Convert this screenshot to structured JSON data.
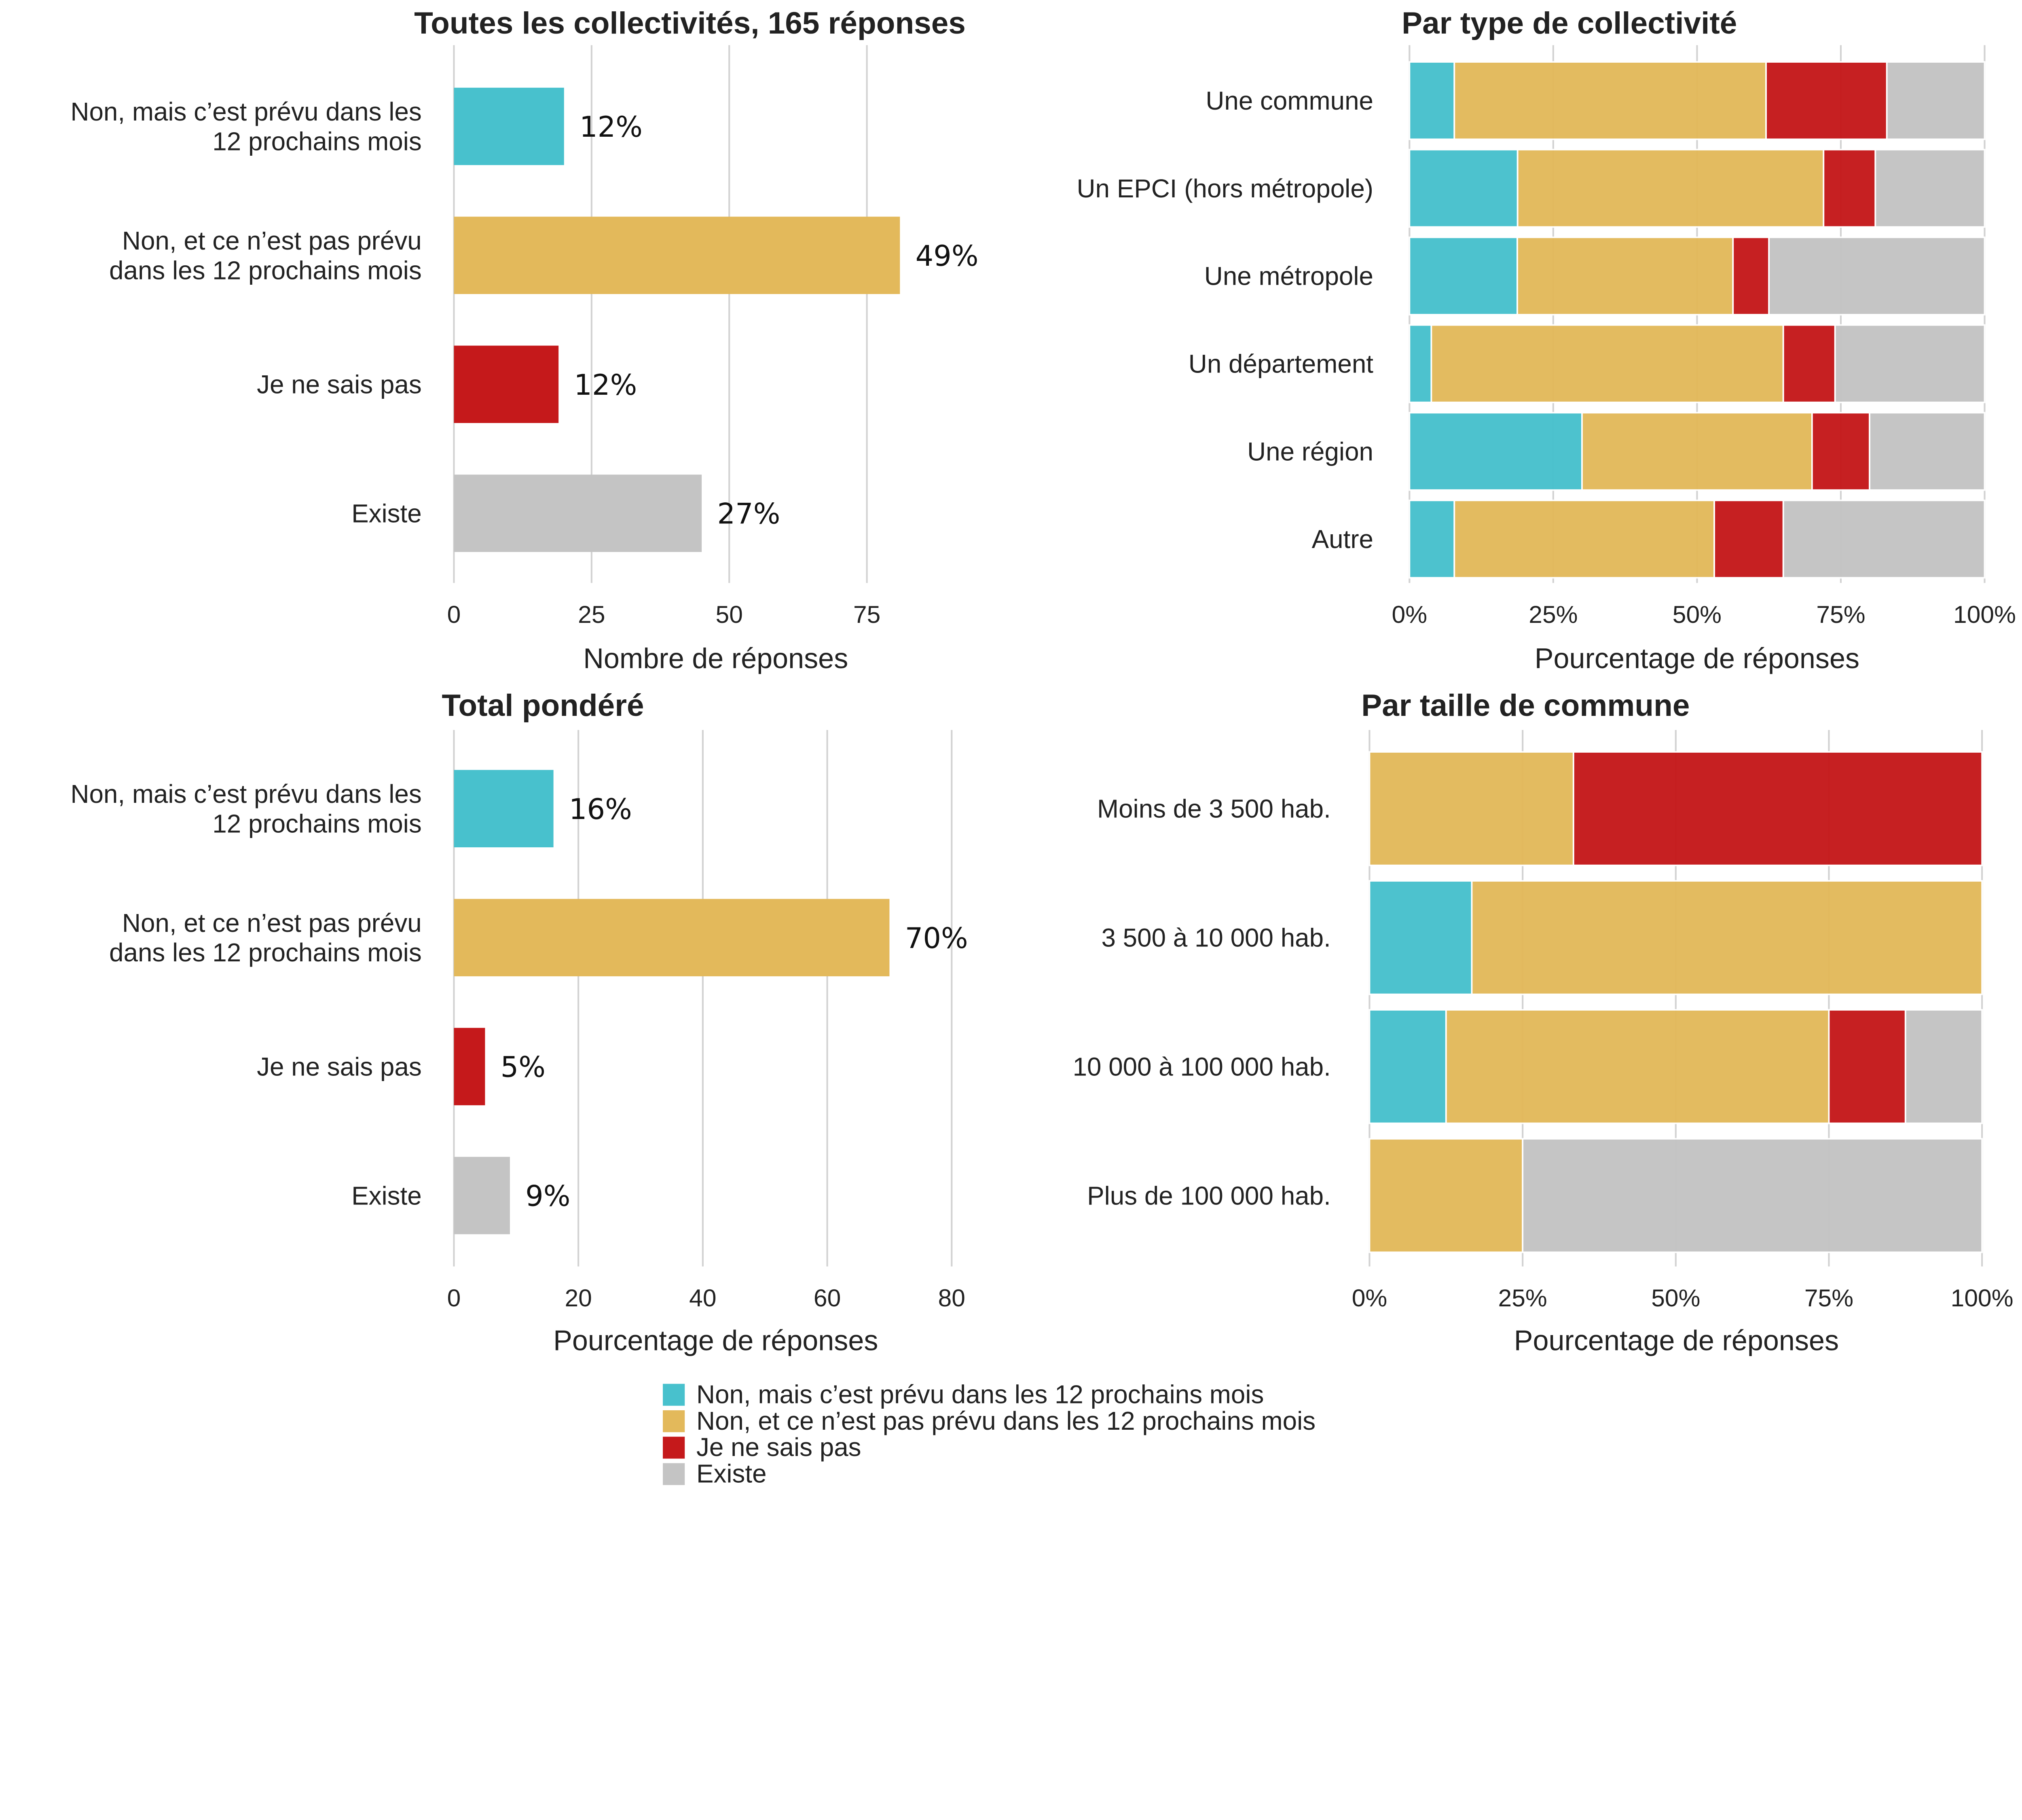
{
  "colors": {
    "planned": "#48C1CD",
    "not_planned": "#E3B95B",
    "dont_know": "#C5191B",
    "exists": "#C4C4C4"
  },
  "legend": [
    {
      "label": "Non, mais c’est prévu dans les 12 prochains mois",
      "color": "#48C1CD"
    },
    {
      "label": "Non, et ce n’est pas prévu dans les 12 prochains mois",
      "color": "#E3B95B"
    },
    {
      "label": "Je ne sais pas",
      "color": "#C5191B"
    },
    {
      "label": "Existe",
      "color": "#C4C4C4"
    }
  ],
  "chart_data": [
    {
      "type": "bar",
      "title": "Toutes les collectivités, 165 réponses",
      "xlabel": "Nombre de réponses",
      "categories": [
        [
          "Non, mais c’est prévu dans les",
          "12 prochains mois"
        ],
        [
          "Non, et ce n’est pas prévu",
          "dans les 12 prochains mois"
        ],
        [
          "Je ne sais pas"
        ],
        [
          "Existe"
        ]
      ],
      "values": [
        20,
        81,
        19,
        45
      ],
      "data_labels": [
        "12%",
        "49%",
        "12%",
        "27%"
      ],
      "xticks": [
        "0",
        "25",
        "50",
        "75"
      ],
      "xlim": [
        0,
        100
      ],
      "grid": true
    },
    {
      "type": "bar",
      "stacked": true,
      "title": "Par type de collectivité",
      "xlabel": "Pourcentage de réponses",
      "categories": [
        "Une commune",
        "Un EPCI (hors métropole)",
        "Une métropole",
        "Un département",
        "Une région",
        "Autre"
      ],
      "series": [
        {
          "name": "Non, mais c’est prévu dans les 12 prochains mois",
          "values": [
            7.8,
            18.8,
            18.75,
            3.8,
            30,
            7.8
          ]
        },
        {
          "name": "Non, et ce n’est pas prévu dans les 12 prochains mois",
          "values": [
            54.2,
            53.2,
            37.5,
            61.2,
            40,
            45.2
          ]
        },
        {
          "name": "Je ne sais pas",
          "values": [
            21,
            9,
            6.25,
            9,
            10,
            12
          ]
        },
        {
          "name": "Existe",
          "values": [
            17,
            19,
            37.5,
            26,
            20,
            35
          ]
        }
      ],
      "xticks": [
        "0%",
        "25%",
        "50%",
        "75%",
        "100%"
      ],
      "xlim": [
        0,
        100
      ],
      "grid": true
    },
    {
      "type": "bar",
      "title": "Total pondéré",
      "xlabel": "Pourcentage de réponses",
      "categories": [
        [
          "Non, mais c’est prévu dans les",
          "12 prochains mois"
        ],
        [
          "Non, et ce n’est pas prévu",
          "dans les 12 prochains mois"
        ],
        [
          "Je ne sais pas"
        ],
        [
          "Existe"
        ]
      ],
      "values": [
        16,
        70,
        5,
        9
      ],
      "data_labels": [
        "16%",
        "70%",
        "5%",
        "9%"
      ],
      "xticks": [
        "0",
        "20",
        "40",
        "60",
        "80"
      ],
      "xlim": [
        0,
        80
      ],
      "grid": true
    },
    {
      "type": "bar",
      "stacked": true,
      "title": "Par taille de commune",
      "xlabel": "Pourcentage de réponses",
      "categories": [
        "Moins de 3 500 hab.",
        "3 500 à 10 000 hab.",
        "10 000 à 100 000 hab.",
        "Plus de 100 000 hab."
      ],
      "series": [
        {
          "name": "Non, mais c’est prévu dans les 12 prochains mois",
          "values": [
            0,
            16.7,
            12.5,
            0
          ]
        },
        {
          "name": "Non, et ce n’est pas prévu dans les 12 prochains mois",
          "values": [
            33.3,
            83.3,
            62.5,
            25
          ]
        },
        {
          "name": "Je ne sais pas",
          "values": [
            66.7,
            0,
            12.5,
            0
          ]
        },
        {
          "name": "Existe",
          "values": [
            0,
            0,
            12.5,
            75
          ]
        }
      ],
      "xticks": [
        "0%",
        "25%",
        "50%",
        "75%",
        "100%"
      ],
      "xlim": [
        0,
        100
      ],
      "grid": true
    }
  ]
}
